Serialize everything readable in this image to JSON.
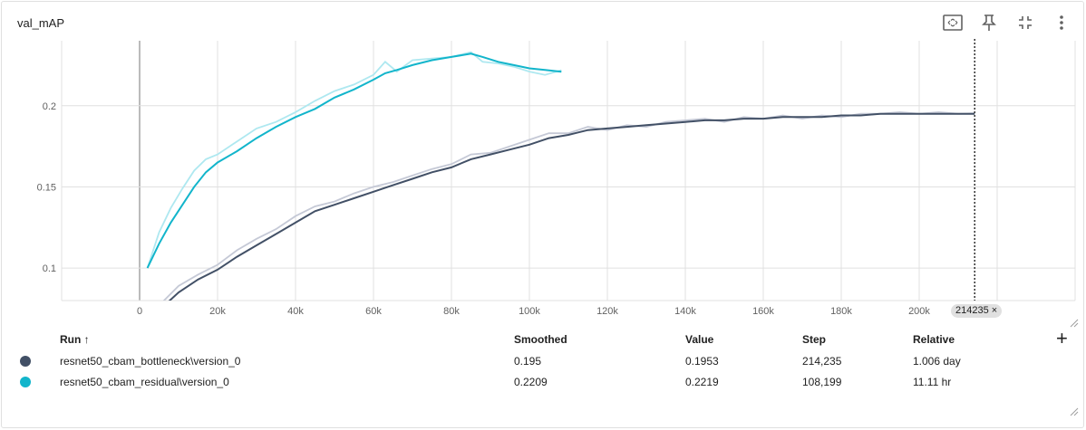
{
  "card": {
    "title": "val_mAP",
    "hover_step_label": "214235 ×"
  },
  "toolbar": [
    {
      "name": "fit-domain-icon"
    },
    {
      "name": "pin-icon"
    },
    {
      "name": "fullscreen-icon"
    },
    {
      "name": "more-vert-icon"
    }
  ],
  "table": {
    "headers": {
      "run": "Run ↑",
      "smoothed": "Smoothed",
      "value": "Value",
      "step": "Step",
      "relative": "Relative"
    },
    "rows": [
      {
        "run": "resnet50_cbam_bottleneck\\version_0",
        "smoothed": "0.195",
        "value": "0.1953",
        "step": "214,235",
        "relative": "1.006 day",
        "color": "#425066"
      },
      {
        "run": "resnet50_cbam_residual\\version_0",
        "smoothed": "0.2209",
        "value": "0.2219",
        "step": "108,199",
        "relative": "11.11 hr",
        "color": "#12b5cb"
      }
    ]
  },
  "chart_data": {
    "type": "line",
    "title": "val_mAP",
    "xlabel": "",
    "ylabel": "",
    "xlim": [
      -20000,
      240000
    ],
    "ylim": [
      0.08,
      0.24
    ],
    "x_ticks": [
      0,
      20000,
      40000,
      60000,
      80000,
      100000,
      120000,
      140000,
      160000,
      180000,
      200000
    ],
    "x_tick_labels": [
      "0",
      "20k",
      "40k",
      "60k",
      "80k",
      "100k",
      "120k",
      "140k",
      "160k",
      "180k",
      "200k"
    ],
    "y_ticks": [
      0.1,
      0.15,
      0.2
    ],
    "y_tick_labels": [
      "0.1",
      "0.15",
      "0.2"
    ],
    "grid": true,
    "hover_x": 214235,
    "series": [
      {
        "name": "resnet50_cbam_bottleneck\\version_0",
        "color": "#425066",
        "raw_color": "#c5c9d6",
        "x": [
          5000,
          10000,
          15000,
          20000,
          25000,
          30000,
          35000,
          40000,
          45000,
          50000,
          55000,
          60000,
          65000,
          70000,
          75000,
          80000,
          85000,
          90000,
          95000,
          100000,
          105000,
          110000,
          115000,
          120000,
          125000,
          130000,
          135000,
          140000,
          145000,
          150000,
          155000,
          160000,
          165000,
          170000,
          175000,
          180000,
          185000,
          190000,
          195000,
          200000,
          205000,
          210000,
          214235
        ],
        "smoothed": [
          0.074,
          0.085,
          0.093,
          0.099,
          0.107,
          0.114,
          0.121,
          0.128,
          0.135,
          0.139,
          0.143,
          0.147,
          0.151,
          0.155,
          0.159,
          0.162,
          0.167,
          0.17,
          0.173,
          0.176,
          0.18,
          0.182,
          0.185,
          0.186,
          0.187,
          0.188,
          0.189,
          0.19,
          0.191,
          0.191,
          0.192,
          0.192,
          0.193,
          0.193,
          0.193,
          0.194,
          0.194,
          0.195,
          0.195,
          0.195,
          0.195,
          0.195,
          0.195
        ],
        "raw": [
          0.077,
          0.089,
          0.096,
          0.102,
          0.111,
          0.118,
          0.124,
          0.132,
          0.138,
          0.141,
          0.146,
          0.15,
          0.153,
          0.157,
          0.161,
          0.164,
          0.17,
          0.171,
          0.175,
          0.179,
          0.183,
          0.183,
          0.187,
          0.185,
          0.188,
          0.187,
          0.19,
          0.191,
          0.192,
          0.19,
          0.193,
          0.192,
          0.194,
          0.192,
          0.194,
          0.193,
          0.195,
          0.195,
          0.196,
          0.195,
          0.196,
          0.195,
          0.1953
        ]
      },
      {
        "name": "resnet50_cbam_residual\\version_0",
        "color": "#12b5cb",
        "raw_color": "#aee8f0",
        "x": [
          2000,
          5000,
          8000,
          11000,
          14000,
          17000,
          20000,
          25000,
          30000,
          35000,
          40000,
          45000,
          50000,
          55000,
          60000,
          63000,
          66000,
          70000,
          75000,
          80000,
          85000,
          88000,
          92000,
          96000,
          100000,
          104000,
          108199
        ],
        "smoothed": [
          0.1,
          0.115,
          0.128,
          0.139,
          0.15,
          0.159,
          0.165,
          0.172,
          0.18,
          0.187,
          0.193,
          0.198,
          0.205,
          0.21,
          0.216,
          0.22,
          0.222,
          0.225,
          0.228,
          0.23,
          0.232,
          0.23,
          0.227,
          0.225,
          0.223,
          0.222,
          0.2209
        ],
        "raw": [
          0.1,
          0.122,
          0.137,
          0.149,
          0.16,
          0.167,
          0.17,
          0.178,
          0.186,
          0.19,
          0.196,
          0.203,
          0.209,
          0.213,
          0.219,
          0.227,
          0.221,
          0.228,
          0.229,
          0.23,
          0.233,
          0.227,
          0.226,
          0.224,
          0.221,
          0.219,
          0.2219
        ]
      }
    ]
  }
}
